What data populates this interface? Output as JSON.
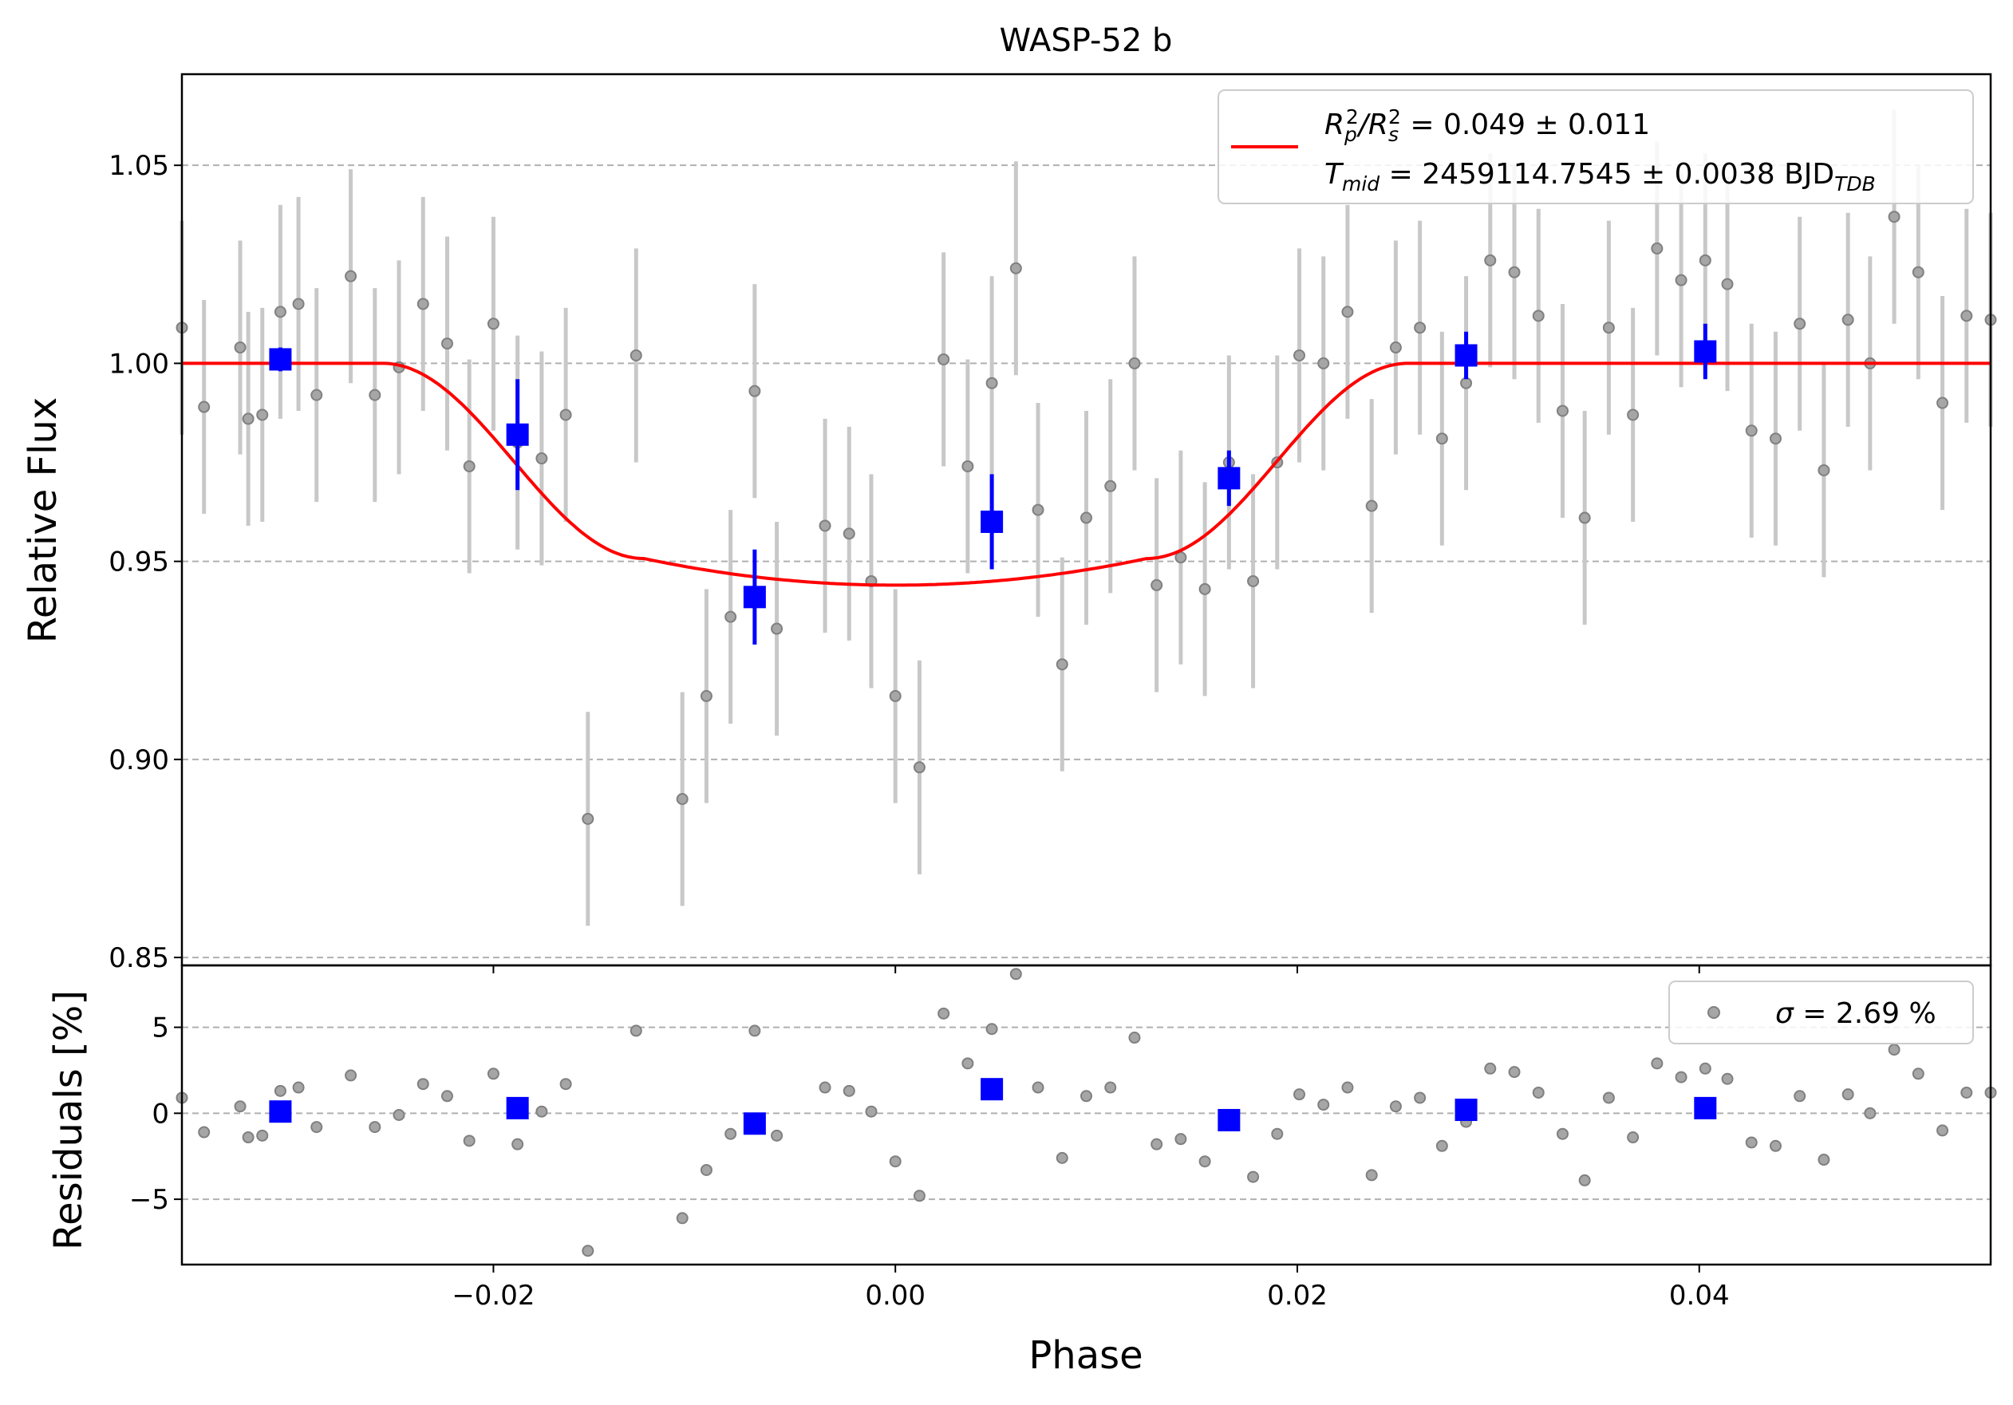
{
  "chart_data": [
    {
      "type": "scatter",
      "panel": "main",
      "title": "WASP-52 b",
      "xlabel": "",
      "ylabel": "Relative Flux",
      "xlim": [
        -0.0355,
        0.0545
      ],
      "ylim": [
        0.848,
        1.073
      ],
      "x_ticks": [
        -0.02,
        0.0,
        0.02,
        0.04
      ],
      "y_ticks": [
        0.85,
        0.9,
        0.95,
        1.0,
        1.05
      ],
      "y_tick_labels": [
        "0.85",
        "0.90",
        "0.95",
        "1.00",
        "1.05"
      ],
      "grid": "y dashed",
      "legend_placement": "top-right",
      "legend": {
        "line1_prefix": "R",
        "line1_sub1": "p",
        "line1_sup1": "2",
        "line1_slash": "/R",
        "line1_sub2": "s",
        "line1_sup2": "2",
        "line1_value": " = 0.049 ± 0.011",
        "line2_prefix": "T",
        "line2_sub": "mid",
        "line2_value": " = 2459114.7545 ± 0.0038 BJD",
        "line2_sub2": "TDB"
      },
      "series": [
        {
          "name": "raw",
          "color": "#808080",
          "errorbar_color": "#c8c8c8",
          "x": [
            -0.0355,
            -0.0344,
            -0.0326,
            -0.0322,
            -0.0315,
            -0.0306,
            -0.0297,
            -0.0288,
            -0.0271,
            -0.0259,
            -0.0247,
            -0.0235,
            -0.0223,
            -0.0212,
            -0.02,
            -0.0188,
            -0.0176,
            -0.0164,
            -0.0153,
            -0.0129,
            -0.0106,
            -0.0094,
            -0.0082,
            -0.007,
            -0.0059,
            -0.0035,
            -0.0023,
            -0.0012,
            0.0,
            0.0012,
            0.0024,
            0.0036,
            0.0048,
            0.006,
            0.0071,
            0.0083,
            0.0095,
            0.0107,
            0.0119,
            0.013,
            0.0142,
            0.0154,
            0.0166,
            0.0178,
            0.019,
            0.0201,
            0.0213,
            0.0225,
            0.0237,
            0.0249,
            0.0261,
            0.0272,
            0.0284,
            0.0296,
            0.0308,
            0.032,
            0.0332,
            0.0343,
            0.0355,
            0.0367,
            0.0379,
            0.0391,
            0.0403,
            0.0414,
            0.0426,
            0.0438,
            0.045,
            0.0462,
            0.0474,
            0.0485,
            0.0497,
            0.0509,
            0.0521,
            0.0533,
            0.0545
          ],
          "y": [
            1.009,
            0.989,
            1.004,
            0.986,
            0.987,
            1.013,
            1.015,
            0.992,
            1.022,
            0.992,
            0.999,
            1.015,
            1.005,
            0.974,
            1.01,
            0.98,
            0.976,
            0.987,
            0.885,
            1.002,
            0.89,
            0.916,
            0.936,
            0.993,
            0.933,
            0.959,
            0.957,
            0.945,
            0.916,
            0.898,
            1.001,
            0.974,
            0.995,
            1.024,
            0.963,
            0.924,
            0.961,
            0.969,
            1.0,
            0.944,
            0.951,
            0.943,
            0.975,
            0.945,
            0.975,
            1.002,
            1.0,
            1.013,
            0.964,
            1.004,
            1.009,
            0.981,
            0.995,
            1.026,
            1.023,
            1.012,
            0.988,
            0.961,
            1.009,
            0.987,
            1.029,
            1.021,
            1.026,
            1.02,
            0.983,
            0.981,
            1.01,
            0.973,
            1.011,
            1.0,
            1.037,
            1.023,
            0.99,
            1.012,
            1.011
          ],
          "yerr": 0.027
        },
        {
          "name": "binned",
          "color": "#0000ff",
          "x": [
            -0.0306,
            -0.0188,
            -0.007,
            0.0048,
            0.0166,
            0.0284,
            0.0403
          ],
          "y": [
            1.001,
            0.982,
            0.941,
            0.96,
            0.971,
            1.002,
            1.003
          ],
          "yerr": [
            0.003,
            0.014,
            0.012,
            0.012,
            0.007,
            0.006,
            0.007
          ]
        },
        {
          "name": "model",
          "color": "#ff0000",
          "depth": 0.056,
          "t1": 0.0255,
          "t2": 0.0125
        }
      ]
    },
    {
      "type": "scatter",
      "panel": "residuals",
      "xlabel": "Phase",
      "ylabel": "Residuals [%]",
      "xlim": [
        -0.0355,
        0.0545
      ],
      "ylim": [
        -8.8,
        8.6
      ],
      "x_ticks": [
        -0.02,
        0.0,
        0.02,
        0.04
      ],
      "x_tick_labels": [
        "−0.02",
        "0.00",
        "0.02",
        "0.04"
      ],
      "y_ticks": [
        -5,
        0,
        5
      ],
      "y_tick_labels": [
        "−5",
        "0",
        "5"
      ],
      "grid": "y dashed",
      "legend_placement": "top-right",
      "legend": {
        "sigma_symbol": "σ",
        "sigma_value": " = 2.69 %"
      },
      "series": [
        {
          "name": "raw",
          "color": "#808080",
          "x": [
            -0.0355,
            -0.0344,
            -0.0326,
            -0.0322,
            -0.0315,
            -0.0306,
            -0.0297,
            -0.0288,
            -0.0271,
            -0.0259,
            -0.0247,
            -0.0235,
            -0.0223,
            -0.0212,
            -0.02,
            -0.0188,
            -0.0176,
            -0.0164,
            -0.0153,
            -0.0129,
            -0.0106,
            -0.0094,
            -0.0082,
            -0.007,
            -0.0059,
            -0.0035,
            -0.0023,
            -0.0012,
            0.0,
            0.0012,
            0.0024,
            0.0036,
            0.0048,
            0.006,
            0.0071,
            0.0083,
            0.0095,
            0.0107,
            0.0119,
            0.013,
            0.0142,
            0.0154,
            0.0166,
            0.0178,
            0.019,
            0.0201,
            0.0213,
            0.0225,
            0.0237,
            0.0249,
            0.0261,
            0.0272,
            0.0284,
            0.0296,
            0.0308,
            0.032,
            0.0332,
            0.0343,
            0.0355,
            0.0367,
            0.0379,
            0.0391,
            0.0403,
            0.0414,
            0.0426,
            0.0438,
            0.045,
            0.0462,
            0.0474,
            0.0485,
            0.0497,
            0.0509,
            0.0521,
            0.0533,
            0.0545
          ],
          "y": [
            0.9,
            -1.1,
            0.4,
            -1.4,
            -1.3,
            1.3,
            1.5,
            -0.8,
            2.2,
            -0.8,
            -0.1,
            1.7,
            1.0,
            -1.6,
            2.3,
            -1.8,
            0.1,
            1.7,
            -8.0,
            4.8,
            -6.1,
            -3.3,
            -1.2,
            4.8,
            -1.3,
            1.5,
            1.3,
            0.1,
            -2.8,
            -4.8,
            5.8,
            2.9,
            4.9,
            8.1,
            1.5,
            -2.6,
            1.0,
            1.5,
            4.4,
            -1.8,
            -1.5,
            -2.8,
            -0.1,
            -3.7,
            -1.2,
            1.1,
            0.5,
            1.5,
            -3.6,
            0.4,
            0.9,
            -1.9,
            -0.5,
            2.6,
            2.4,
            1.2,
            -1.2,
            -3.9,
            0.9,
            -1.4,
            2.9,
            2.1,
            2.6,
            2.0,
            -1.7,
            -1.9,
            1.0,
            -2.7,
            1.1,
            0.0,
            3.7,
            2.3,
            -1.0,
            1.2,
            1.2
          ]
        },
        {
          "name": "binned",
          "color": "#0000ff",
          "x": [
            -0.0306,
            -0.0188,
            -0.007,
            0.0048,
            0.0166,
            0.0284,
            0.0403
          ],
          "y": [
            0.1,
            0.3,
            -0.6,
            1.4,
            -0.4,
            0.2,
            0.3
          ]
        }
      ]
    }
  ]
}
